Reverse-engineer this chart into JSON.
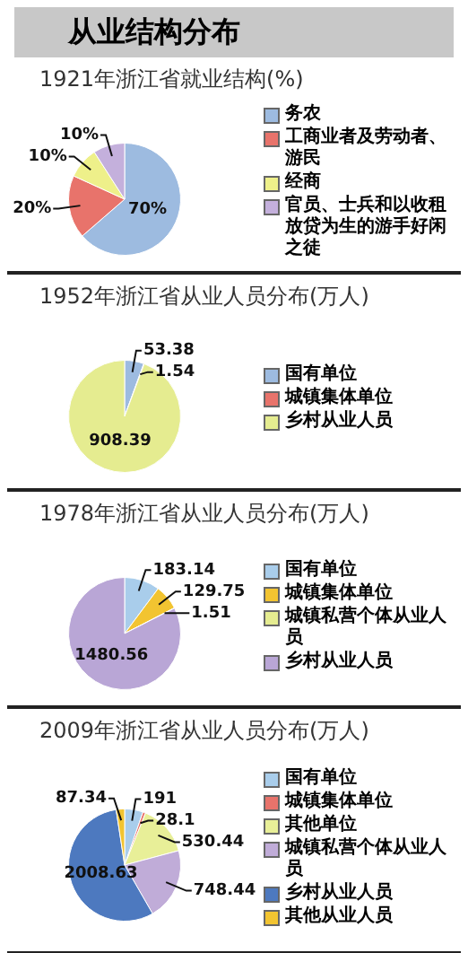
{
  "chart_data": [
    {
      "type": "pie",
      "title": "从业结构分布",
      "subtitle": "1921年浙江省就业结构(%)",
      "categories": [
        "务农",
        "工商业者及劳动者、游民",
        "经商",
        "官员、士兵和以收租放贷为生的游手好闲之徒"
      ],
      "values": [
        70,
        20,
        10,
        10
      ],
      "value_labels": [
        "70%",
        "20%",
        "10%",
        "10%"
      ],
      "colors": [
        "#9dbbe0",
        "#e8736b",
        "#eef08a",
        "#c4b0dc"
      ],
      "legend": "right"
    },
    {
      "type": "pie",
      "subtitle": "1952年浙江省从业人员分布(万人)",
      "categories": [
        "国有单位",
        "城镇集体单位",
        "乡村从业人员"
      ],
      "values": [
        53.38,
        1.54,
        908.39
      ],
      "colors": [
        "#9dbbe0",
        "#e8736b",
        "#e5ec90"
      ],
      "data_labels": true,
      "legend": "right"
    },
    {
      "type": "pie",
      "subtitle": "1978年浙江省从业人员分布(万人)",
      "categories": [
        "国有单位",
        "城镇集体单位",
        "城镇私营个体从业人员",
        "乡村从业人员"
      ],
      "values": [
        183.14,
        129.75,
        1.51,
        1480.56
      ],
      "colors": [
        "#a9cdeb",
        "#f2c431",
        "#e5ec90",
        "#b9a6d6"
      ],
      "data_labels": true,
      "legend": "right"
    },
    {
      "type": "pie",
      "subtitle": "2009年浙江省从业人员分布(万人)",
      "categories": [
        "国有单位",
        "城镇集体单位",
        "其他单位",
        "城镇私营个体从业人员",
        "乡村从业人员",
        "其他从业人员"
      ],
      "values": [
        191,
        28.1,
        530.44,
        748.44,
        2008.63,
        87.34
      ],
      "colors": [
        "#a9cdeb",
        "#e8736b",
        "#e8ef98",
        "#c0acd8",
        "#4d79bf",
        "#f2c431"
      ],
      "data_labels": true,
      "legend": "right"
    }
  ]
}
